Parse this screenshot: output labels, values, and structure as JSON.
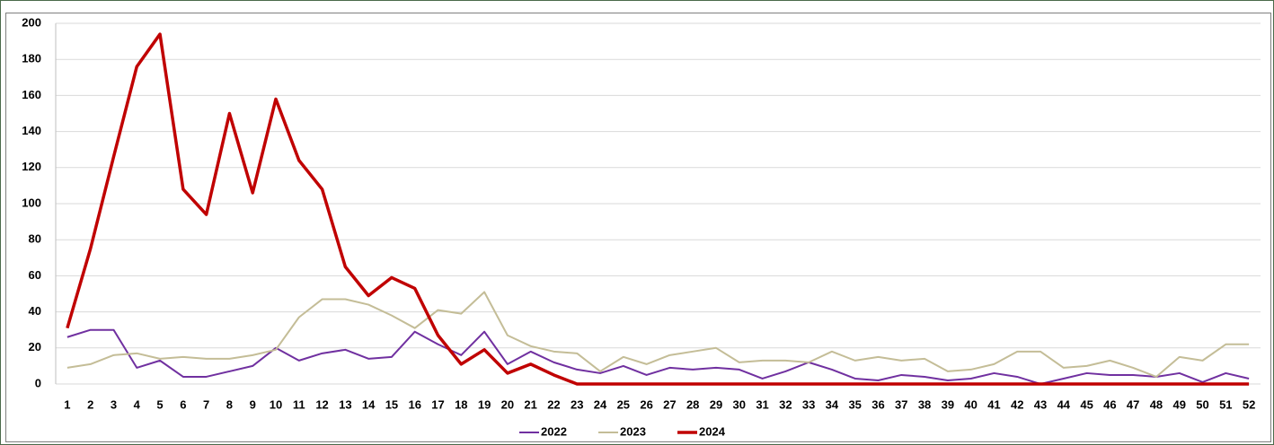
{
  "chart_data": {
    "type": "line",
    "categories": [
      "1",
      "2",
      "3",
      "4",
      "5",
      "6",
      "7",
      "8",
      "9",
      "10",
      "11",
      "12",
      "13",
      "14",
      "15",
      "16",
      "17",
      "18",
      "19",
      "20",
      "21",
      "22",
      "23",
      "24",
      "25",
      "26",
      "27",
      "28",
      "29",
      "30",
      "31",
      "32",
      "33",
      "34",
      "35",
      "36",
      "37",
      "38",
      "39",
      "40",
      "41",
      "42",
      "43",
      "44",
      "45",
      "46",
      "47",
      "48",
      "49",
      "50",
      "51",
      "52"
    ],
    "series": [
      {
        "name": "2022",
        "color": "#7030a0",
        "line_width": 2,
        "values": [
          26,
          30,
          30,
          9,
          13,
          4,
          4,
          7,
          10,
          20,
          13,
          17,
          19,
          14,
          15,
          29,
          22,
          16,
          29,
          11,
          18,
          12,
          8,
          6,
          10,
          5,
          9,
          8,
          9,
          8,
          3,
          7,
          12,
          8,
          3,
          2,
          5,
          4,
          2,
          3,
          6,
          4,
          0,
          3,
          6,
          5,
          5,
          4,
          6,
          1,
          6,
          3
        ]
      },
      {
        "name": "2023",
        "color": "#c4bd97",
        "line_width": 2,
        "values": [
          9,
          11,
          16,
          17,
          14,
          15,
          14,
          14,
          16,
          19,
          37,
          47,
          47,
          44,
          38,
          31,
          41,
          39,
          51,
          27,
          21,
          18,
          17,
          7,
          15,
          11,
          16,
          18,
          20,
          12,
          13,
          13,
          12,
          18,
          13,
          15,
          13,
          14,
          7,
          8,
          11,
          18,
          18,
          9,
          10,
          13,
          9,
          4,
          15,
          13,
          22,
          22
        ]
      },
      {
        "name": "2024",
        "color": "#c00000",
        "line_width": 3.5,
        "values": [
          31,
          75,
          126,
          176,
          194,
          108,
          94,
          150,
          106,
          158,
          124,
          108,
          65,
          49,
          59,
          53,
          27,
          11,
          19,
          6,
          11,
          5,
          0,
          0,
          0,
          0,
          0,
          0,
          0,
          0,
          0,
          0,
          0,
          0,
          0,
          0,
          0,
          0,
          0,
          0,
          0,
          0,
          0,
          0,
          0,
          0,
          0,
          0,
          0,
          0,
          0,
          0
        ]
      }
    ],
    "ylim": [
      0,
      200
    ],
    "yticks": [
      0,
      20,
      40,
      60,
      80,
      100,
      120,
      140,
      160,
      180,
      200
    ],
    "grid": true,
    "legend": "bottom"
  }
}
